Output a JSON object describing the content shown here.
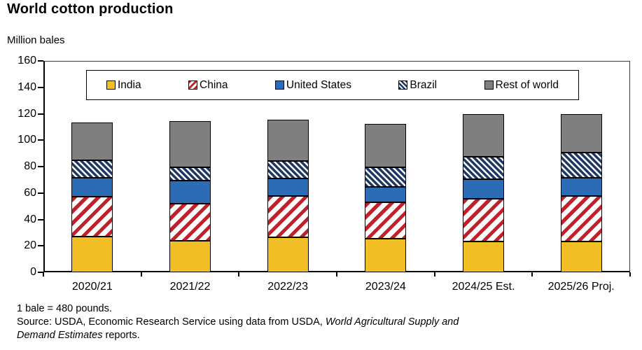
{
  "title": "World cotton production",
  "unit_label": "Million bales",
  "footnotes": {
    "line1": "1 bale = 480 pounds.",
    "source_prefix": "Source: USDA, Economic Research Service using data from USDA, ",
    "source_italic_line1": "World Agricultural Supply and",
    "source_italic_line2": "Demand Estimates",
    "source_suffix": " reports."
  },
  "colors": {
    "axis": "#000000",
    "plot_border": "#3a3a3a",
    "text": "#000000",
    "background": "#ffffff"
  },
  "chart_data": {
    "type": "bar",
    "stacked": true,
    "title": "World cotton production",
    "ylabel": "Million bales",
    "xlabel": "",
    "ylim": [
      0,
      160
    ],
    "ytick_step": 20,
    "grid": false,
    "legend_position": "top-inside",
    "categories": [
      "2020/21",
      "2021/22",
      "2022/23",
      "2023/24",
      "2024/25 Est.",
      "2025/26 Proj."
    ],
    "series": [
      {
        "name": "India",
        "pattern": "solid",
        "color": "#F1BE26",
        "pattern_bg": "#F1BE26",
        "values": [
          27.0,
          24.0,
          26.5,
          25.5,
          23.5,
          23.5
        ]
      },
      {
        "name": "China",
        "pattern": "diagonal-up",
        "color": "#C0202A",
        "pattern_bg": "#FFFFFF",
        "values": [
          30.0,
          28.0,
          31.0,
          27.5,
          32.0,
          34.5
        ]
      },
      {
        "name": "United States",
        "pattern": "solid",
        "color": "#2B6CB5",
        "pattern_bg": "#2B6CB5",
        "values": [
          14.5,
          17.5,
          13.5,
          11.5,
          15.0,
          13.5
        ]
      },
      {
        "name": "Brazil",
        "pattern": "diagonal-down",
        "color": "#1F3864",
        "pattern_bg": "#FFFFFF",
        "values": [
          13.5,
          10.0,
          13.0,
          15.0,
          17.0,
          19.0
        ]
      },
      {
        "name": "Rest of world",
        "pattern": "solid",
        "color": "#7F7F7F",
        "pattern_bg": "#7F7F7F",
        "values": [
          28.5,
          35.0,
          31.5,
          33.0,
          32.5,
          29.5
        ]
      }
    ],
    "totals": [
      113.5,
      114.5,
      115.5,
      112.5,
      120.0,
      120.0
    ]
  }
}
